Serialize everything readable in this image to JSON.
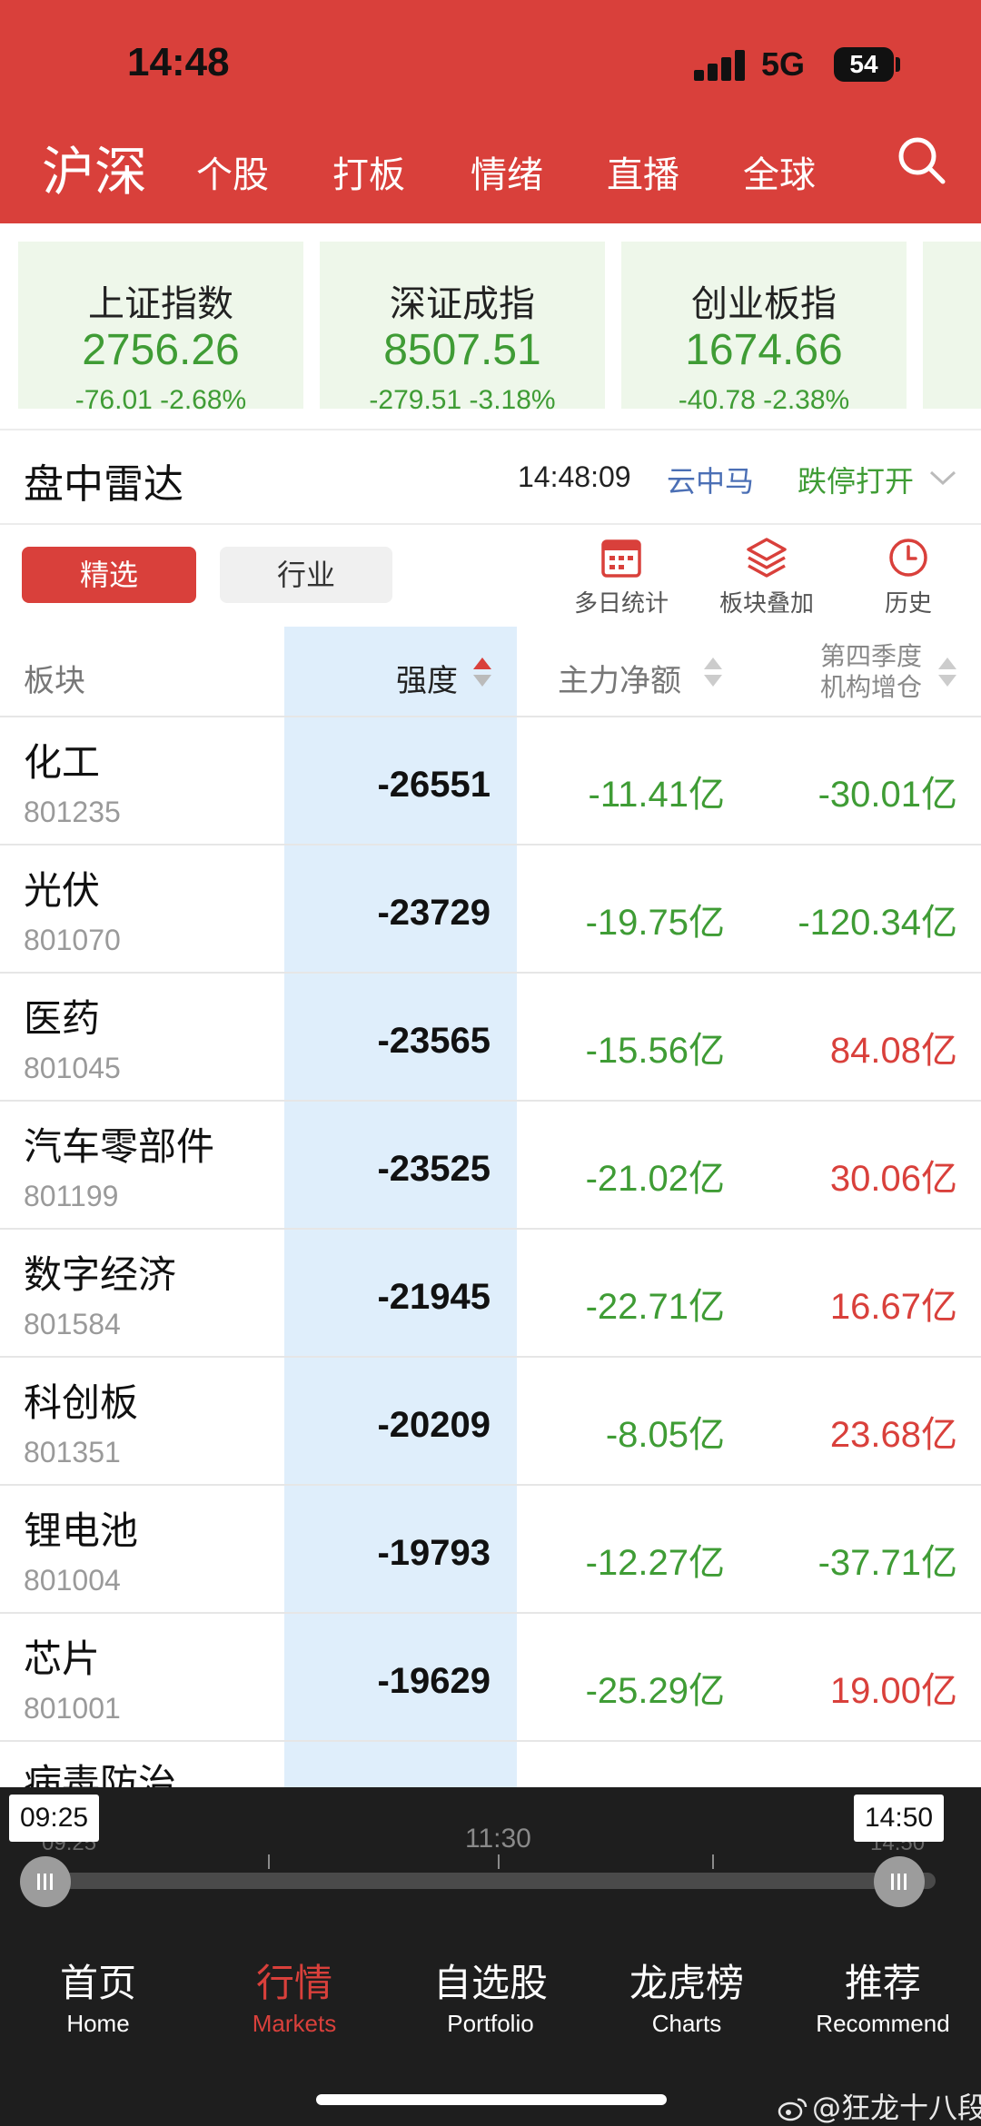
{
  "status_bar": {
    "time": "14:48",
    "network": "5G",
    "battery": "54"
  },
  "nav": {
    "title": "沪深",
    "tabs": [
      "个股",
      "打板",
      "情绪",
      "直播",
      "全球"
    ]
  },
  "indices": [
    {
      "name": "上证指数",
      "value": "2756.26",
      "change": "-76.01",
      "pct": "-2.68%"
    },
    {
      "name": "深证成指",
      "value": "8507.51",
      "change": "-279.51",
      "pct": "-3.18%"
    },
    {
      "name": "创业板指",
      "value": "1674.66",
      "change": "-40.78",
      "pct": "-2.38%"
    }
  ],
  "radar": {
    "title": "盘中雷达",
    "time": "14:48:09",
    "source": "云中马",
    "filter": "跌停打开"
  },
  "filters": {
    "selected": "精选",
    "industry": "行业"
  },
  "tools": [
    {
      "label": "多日统计",
      "icon": "calendar-grid-icon"
    },
    {
      "label": "板块叠加",
      "icon": "layers-icon"
    },
    {
      "label": "历史",
      "icon": "clock-icon"
    }
  ],
  "table": {
    "headers": {
      "sector": "板块",
      "strength": "强度",
      "net_flow": "主力净额",
      "inst_line1": "第四季度",
      "inst_line2": "机构增仓"
    },
    "rows": [
      {
        "name": "化工",
        "code": "801235",
        "strength": "-26551",
        "net_flow": "-11.41亿",
        "inst": "-30.01亿",
        "inst_dir": "down"
      },
      {
        "name": "光伏",
        "code": "801070",
        "strength": "-23729",
        "net_flow": "-19.75亿",
        "inst": "-120.34亿",
        "inst_dir": "down"
      },
      {
        "name": "医药",
        "code": "801045",
        "strength": "-23565",
        "net_flow": "-15.56亿",
        "inst": "84.08亿",
        "inst_dir": "up"
      },
      {
        "name": "汽车零部件",
        "code": "801199",
        "strength": "-23525",
        "net_flow": "-21.02亿",
        "inst": "30.06亿",
        "inst_dir": "up"
      },
      {
        "name": "数字经济",
        "code": "801584",
        "strength": "-21945",
        "net_flow": "-22.71亿",
        "inst": "16.67亿",
        "inst_dir": "up"
      },
      {
        "name": "科创板",
        "code": "801351",
        "strength": "-20209",
        "net_flow": "-8.05亿",
        "inst": "23.68亿",
        "inst_dir": "up"
      },
      {
        "name": "锂电池",
        "code": "801004",
        "strength": "-19793",
        "net_flow": "-12.27亿",
        "inst": "-37.71亿",
        "inst_dir": "down"
      },
      {
        "name": "芯片",
        "code": "801001",
        "strength": "-19629",
        "net_flow": "-25.29亿",
        "inst": "19.00亿",
        "inst_dir": "up"
      }
    ],
    "partial_row_name": "病毒防治"
  },
  "timeline": {
    "start": "09:25",
    "mid": "11:30",
    "end": "14:50"
  },
  "tabbar": [
    {
      "zh": "首页",
      "en": "Home",
      "active": false
    },
    {
      "zh": "行情",
      "en": "Markets",
      "active": true
    },
    {
      "zh": "自选股",
      "en": "Portfolio",
      "active": false
    },
    {
      "zh": "龙虎榜",
      "en": "Charts",
      "active": false
    },
    {
      "zh": "推荐",
      "en": "Recommend",
      "active": false
    }
  ],
  "watermark": "@狂龙十八段",
  "colors": {
    "brand_red": "#d9403b",
    "down_green": "#3f9c35",
    "up_red": "#d9403b",
    "link_blue": "#4b6fb5",
    "highlight_col": "#dfeefb"
  }
}
